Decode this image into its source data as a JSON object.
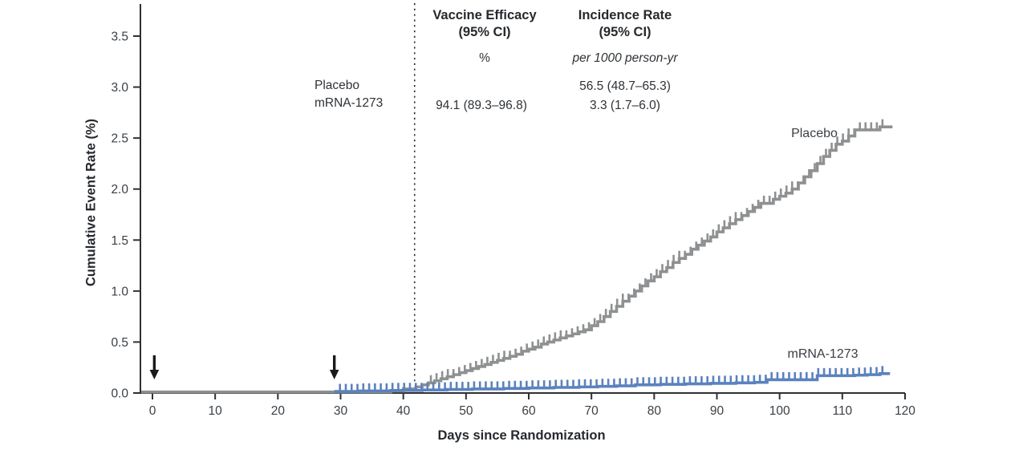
{
  "chart_data": {
    "type": "line",
    "subtype": "kaplan-meier-step",
    "title": "",
    "xlabel": "Days since Randomization",
    "ylabel": "Cumulative Event Rate (%)",
    "xlim": [
      0,
      120
    ],
    "ylim": [
      0,
      3.5
    ],
    "x_ticks": [
      0,
      10,
      20,
      30,
      40,
      50,
      60,
      70,
      80,
      90,
      100,
      110,
      120
    ],
    "y_tick_labels": [
      "0.0",
      "0.5",
      "1.0",
      "1.5",
      "2.0",
      "2.5",
      "3.0",
      "3.5"
    ],
    "grid": false,
    "legend_position": "labels-on-curves",
    "series": [
      {
        "name": "Placebo",
        "color": "#8e9092",
        "points": [
          [
            0,
            0.01
          ],
          [
            38,
            0.02
          ],
          [
            40,
            0.04
          ],
          [
            42,
            0.06
          ],
          [
            43,
            0.08
          ],
          [
            44,
            0.1
          ],
          [
            45,
            0.12
          ],
          [
            46,
            0.14
          ],
          [
            47,
            0.16
          ],
          [
            48,
            0.18
          ],
          [
            49,
            0.2
          ],
          [
            50,
            0.22
          ],
          [
            51,
            0.24
          ],
          [
            52,
            0.26
          ],
          [
            53,
            0.28
          ],
          [
            54,
            0.3
          ],
          [
            55,
            0.32
          ],
          [
            56,
            0.34
          ],
          [
            57,
            0.36
          ],
          [
            58,
            0.38
          ],
          [
            59,
            0.41
          ],
          [
            60,
            0.43
          ],
          [
            61,
            0.45
          ],
          [
            62,
            0.48
          ],
          [
            63,
            0.5
          ],
          [
            64,
            0.52
          ],
          [
            65,
            0.54
          ],
          [
            66,
            0.56
          ],
          [
            67,
            0.58
          ],
          [
            68,
            0.6
          ],
          [
            69,
            0.62
          ],
          [
            70,
            0.66
          ],
          [
            71,
            0.7
          ],
          [
            72,
            0.75
          ],
          [
            73,
            0.8
          ],
          [
            74,
            0.85
          ],
          [
            75,
            0.9
          ],
          [
            76,
            0.95
          ],
          [
            77,
            1.0
          ],
          [
            78,
            1.05
          ],
          [
            79,
            1.1
          ],
          [
            80,
            1.14
          ],
          [
            81,
            1.19
          ],
          [
            82,
            1.23
          ],
          [
            83,
            1.28
          ],
          [
            84,
            1.32
          ],
          [
            85,
            1.36
          ],
          [
            86,
            1.41
          ],
          [
            87,
            1.45
          ],
          [
            88,
            1.49
          ],
          [
            89,
            1.53
          ],
          [
            90,
            1.58
          ],
          [
            91,
            1.62
          ],
          [
            92,
            1.66
          ],
          [
            93,
            1.7
          ],
          [
            94,
            1.74
          ],
          [
            95,
            1.78
          ],
          [
            96,
            1.82
          ],
          [
            97,
            1.86
          ],
          [
            99,
            1.9
          ],
          [
            100,
            1.93
          ],
          [
            101,
            1.96
          ],
          [
            102,
            2.0
          ],
          [
            103,
            2.06
          ],
          [
            104,
            2.12
          ],
          [
            105,
            2.18
          ],
          [
            106,
            2.25
          ],
          [
            107,
            2.32
          ],
          [
            108,
            2.38
          ],
          [
            109,
            2.44
          ],
          [
            110,
            2.47
          ],
          [
            111,
            2.52
          ],
          [
            112,
            2.58
          ],
          [
            116,
            2.61
          ],
          [
            118,
            2.61
          ]
        ],
        "end_day": 118,
        "from_axis": true,
        "censor_ticks": {
          "start": 44.4,
          "end": 117.2,
          "step": 0.9
        }
      },
      {
        "name": "mRNA-1273",
        "color": "#5b82be",
        "points": [
          [
            29,
            0.015
          ],
          [
            33,
            0.02
          ],
          [
            38,
            0.025
          ],
          [
            43,
            0.03
          ],
          [
            47,
            0.035
          ],
          [
            51,
            0.04
          ],
          [
            56,
            0.045
          ],
          [
            60,
            0.05
          ],
          [
            64,
            0.055
          ],
          [
            68,
            0.06
          ],
          [
            71,
            0.065
          ],
          [
            74,
            0.07
          ],
          [
            77,
            0.08
          ],
          [
            81,
            0.085
          ],
          [
            85,
            0.09
          ],
          [
            89,
            0.095
          ],
          [
            93,
            0.1
          ],
          [
            96,
            0.105
          ],
          [
            98,
            0.13
          ],
          [
            102,
            0.13
          ],
          [
            106,
            0.17
          ],
          [
            112,
            0.175
          ],
          [
            114,
            0.18
          ],
          [
            116,
            0.19
          ]
        ],
        "end_day": 117.6,
        "from_axis": false,
        "censor_ticks": {
          "start": 29.9,
          "end": 117.3,
          "step": 0.93
        }
      }
    ],
    "annotations": {
      "dashed_line_day": 41.8,
      "dose_arrow_days": [
        0.3,
        29
      ],
      "arrow_color": "#1a1a1a"
    },
    "axis_color": "#2f3033",
    "tick_label_color": "#3a3f44"
  },
  "stats": {
    "efficacy_header_line1": "Vaccine Efficacy",
    "efficacy_header_line2": "(95% CI)",
    "efficacy_unit": "%",
    "incidence_header_line1": "Incidence Rate",
    "incidence_header_line2": "(95% CI)",
    "incidence_unit": "per 1000 person-yr",
    "rows": [
      {
        "label": "Placebo",
        "efficacy": "",
        "incidence": "56.5 (48.7–65.3)"
      },
      {
        "label": "mRNA-1273",
        "efficacy": "94.1 (89.3–96.8)",
        "incidence": "3.3 (1.7–6.0)"
      }
    ]
  },
  "axes": {
    "x_title": "Days since Randomization",
    "y_title": "Cumulative Event Rate (%)"
  }
}
